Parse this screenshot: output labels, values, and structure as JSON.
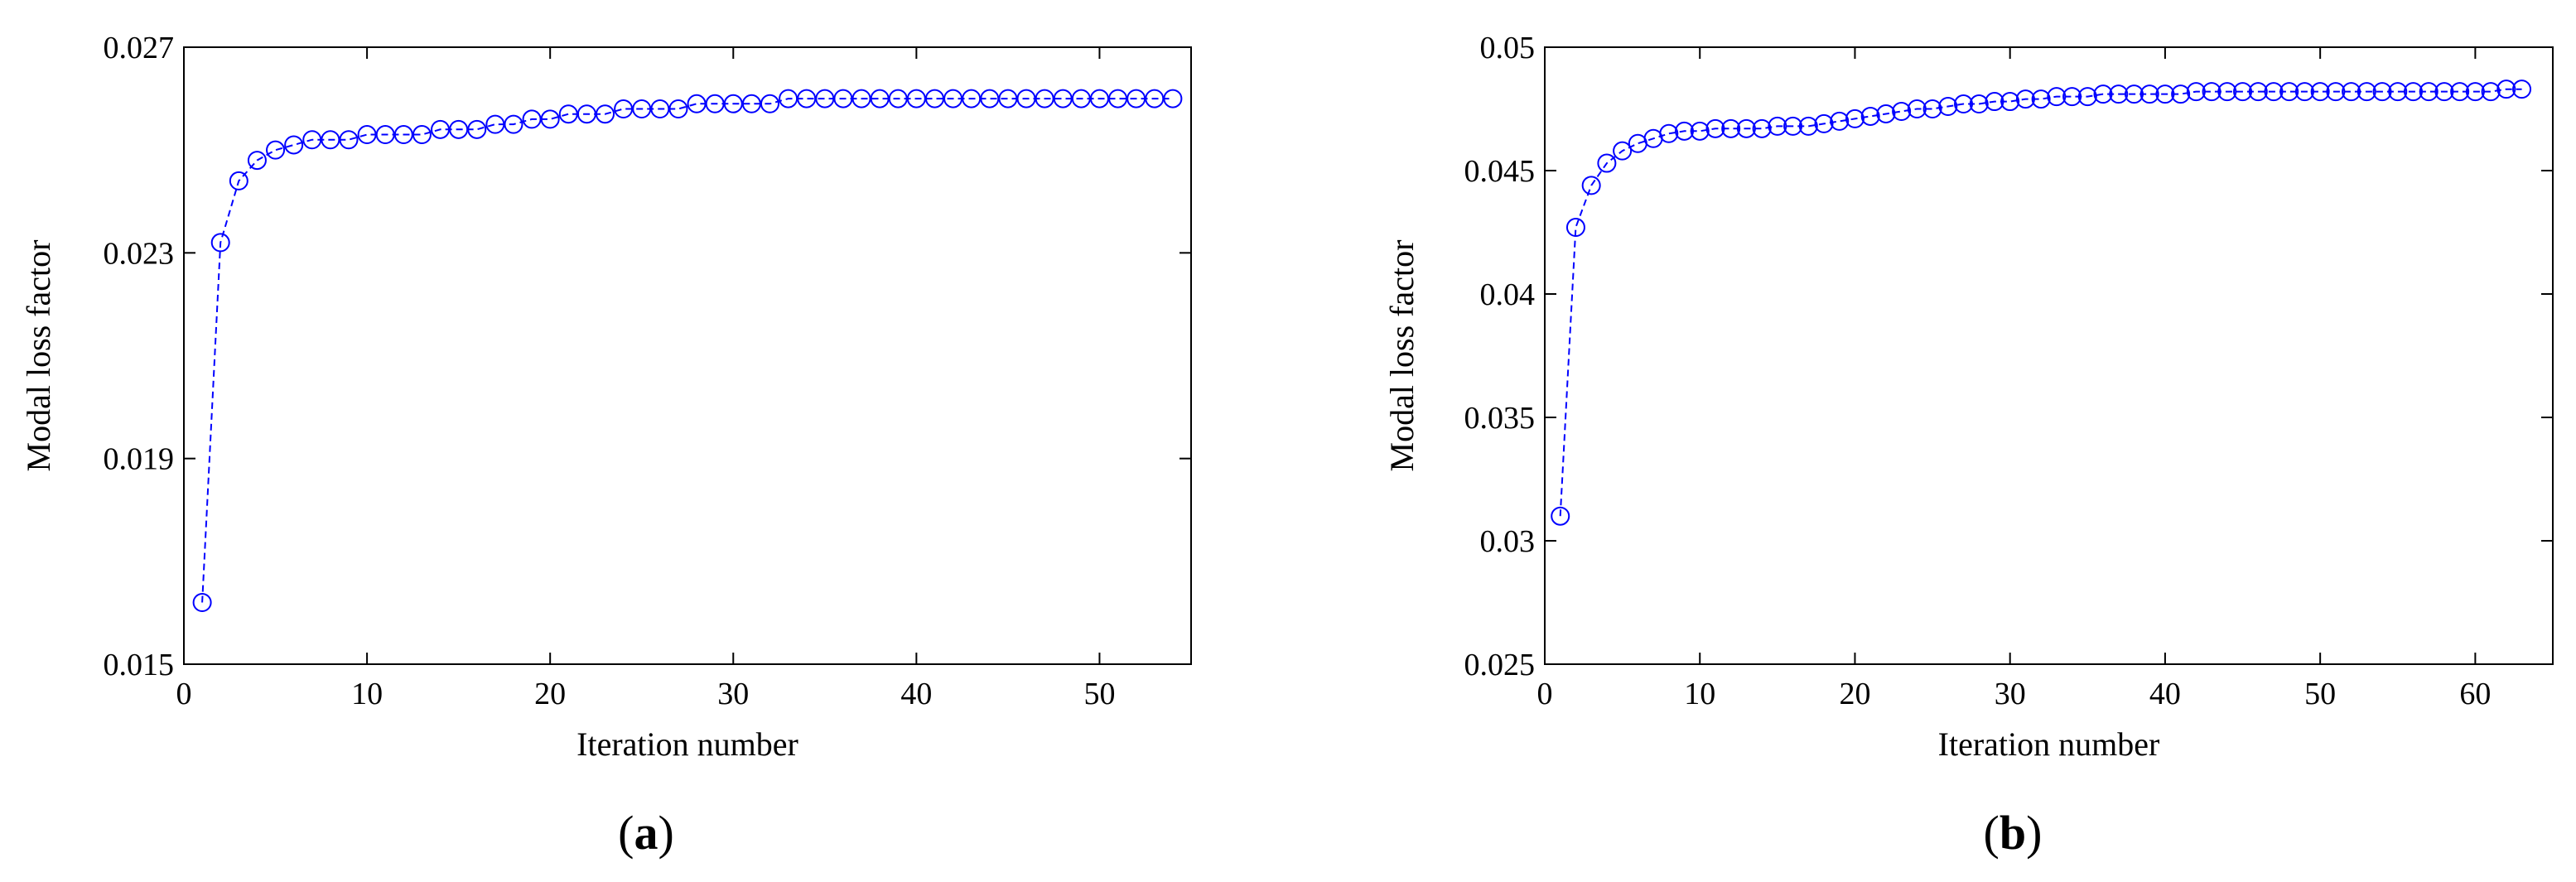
{
  "chart_data": [
    {
      "type": "line",
      "title": "",
      "caption_prefix": "(",
      "caption_letter": "a",
      "caption_suffix": ")",
      "xlabel": "Iteration number",
      "ylabel": "Modal loss factor",
      "xlim": [
        0,
        55
      ],
      "ylim": [
        0.015,
        0.027
      ],
      "xticks": [
        0,
        10,
        20,
        30,
        40,
        50
      ],
      "xtick_labels": [
        "0",
        "10",
        "20",
        "30",
        "40",
        "50"
      ],
      "yticks": [
        0.015,
        0.019,
        0.023,
        0.027
      ],
      "ytick_labels": [
        "0.015",
        "0.019",
        "0.023",
        "0.027"
      ],
      "grid": false,
      "marker": "circle-open",
      "line_style": "dashed",
      "color": "#0000ff",
      "series": [
        {
          "x": [
            1,
            2,
            3,
            4,
            5,
            6,
            7,
            8,
            9,
            10,
            11,
            12,
            13,
            14,
            15,
            16,
            17,
            18,
            19,
            20,
            21,
            22,
            23,
            24,
            25,
            26,
            27,
            28,
            29,
            30,
            31,
            32,
            33,
            34,
            35,
            36,
            37,
            38,
            39,
            40,
            41,
            42,
            43,
            44,
            45,
            46,
            47,
            48,
            49,
            50,
            51,
            52,
            53,
            54
          ],
          "values": [
            0.0162,
            0.0232,
            0.0244,
            0.0248,
            0.025,
            0.0251,
            0.0252,
            0.0252,
            0.0252,
            0.0253,
            0.0253,
            0.0253,
            0.0253,
            0.0254,
            0.0254,
            0.0254,
            0.0255,
            0.0255,
            0.0256,
            0.0256,
            0.0257,
            0.0257,
            0.0257,
            0.0258,
            0.0258,
            0.0258,
            0.0258,
            0.0259,
            0.0259,
            0.0259,
            0.0259,
            0.0259,
            0.026,
            0.026,
            0.026,
            0.026,
            0.026,
            0.026,
            0.026,
            0.026,
            0.026,
            0.026,
            0.026,
            0.026,
            0.026,
            0.026,
            0.026,
            0.026,
            0.026,
            0.026,
            0.026,
            0.026,
            0.026,
            0.026
          ]
        }
      ]
    },
    {
      "type": "line",
      "title": "",
      "caption_prefix": "(",
      "caption_letter": "b",
      "caption_suffix": ")",
      "xlabel": "Iteration number",
      "ylabel": "Modal loss factor",
      "xlim": [
        0,
        65
      ],
      "ylim": [
        0.025,
        0.05
      ],
      "xticks": [
        0,
        10,
        20,
        30,
        40,
        50,
        60
      ],
      "xtick_labels": [
        "0",
        "10",
        "20",
        "30",
        "40",
        "50",
        "60"
      ],
      "yticks": [
        0.025,
        0.03,
        0.035,
        0.04,
        0.045,
        0.05
      ],
      "ytick_labels": [
        "0.025",
        "0.03",
        "0.035",
        "0.04",
        "0.045",
        "0.05"
      ],
      "grid": false,
      "marker": "circle-open",
      "line_style": "dashed",
      "color": "#0000ff",
      "series": [
        {
          "x": [
            1,
            2,
            3,
            4,
            5,
            6,
            7,
            8,
            9,
            10,
            11,
            12,
            13,
            14,
            15,
            16,
            17,
            18,
            19,
            20,
            21,
            22,
            23,
            24,
            25,
            26,
            27,
            28,
            29,
            30,
            31,
            32,
            33,
            34,
            35,
            36,
            37,
            38,
            39,
            40,
            41,
            42,
            43,
            44,
            45,
            46,
            47,
            48,
            49,
            50,
            51,
            52,
            53,
            54,
            55,
            56,
            57,
            58,
            59,
            60,
            61,
            62,
            63
          ],
          "values": [
            0.031,
            0.0427,
            0.0444,
            0.0453,
            0.0458,
            0.0461,
            0.0463,
            0.0465,
            0.0466,
            0.0466,
            0.0467,
            0.0467,
            0.0467,
            0.0467,
            0.0468,
            0.0468,
            0.0468,
            0.0469,
            0.047,
            0.0471,
            0.0472,
            0.0473,
            0.0474,
            0.0475,
            0.0475,
            0.0476,
            0.0477,
            0.0477,
            0.0478,
            0.0478,
            0.0479,
            0.0479,
            0.048,
            0.048,
            0.048,
            0.0481,
            0.0481,
            0.0481,
            0.0481,
            0.0481,
            0.0481,
            0.0482,
            0.0482,
            0.0482,
            0.0482,
            0.0482,
            0.0482,
            0.0482,
            0.0482,
            0.0482,
            0.0482,
            0.0482,
            0.0482,
            0.0482,
            0.0482,
            0.0482,
            0.0482,
            0.0482,
            0.0482,
            0.0482,
            0.0482,
            0.0483,
            0.0483
          ]
        }
      ]
    }
  ]
}
